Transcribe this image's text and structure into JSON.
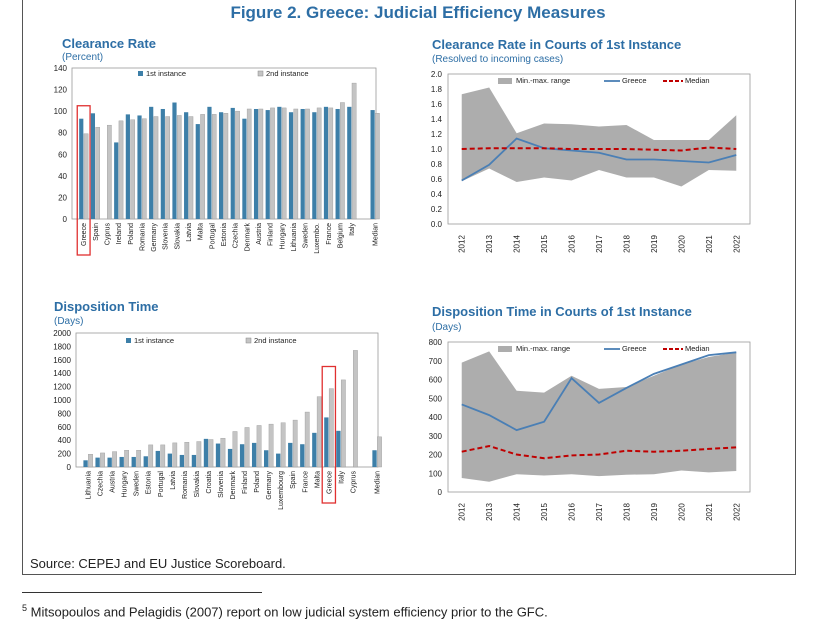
{
  "figure_title": "Figure 2. Greece: Judicial Efficiency Measures",
  "source": "Source: CEPEJ and EU Justice Scoreboard.",
  "footnote": {
    "number": "5",
    "text": "Mitsopoulos and Pelagidis (2007) report on low judicial system efficiency prior to the GFC."
  },
  "colors": {
    "first_instance": "#3d7fa8",
    "second_instance": "#c4c4c4",
    "range": "#adadad",
    "greece_line": "#4a7fb5",
    "median_line": "#c00000",
    "highlight": "#e03030",
    "title": "#2d6ea5"
  },
  "chart_data": [
    {
      "id": "clearance",
      "type": "bar",
      "title": "Clearance Rate",
      "subtitle": "(Percent)",
      "ylim": [
        0,
        140
      ],
      "yticks": [
        0,
        20,
        40,
        60,
        80,
        100,
        120,
        140
      ],
      "categories": [
        "Greece",
        "Spain",
        "Cyprus",
        "Ireland",
        "Poland",
        "Romania",
        "Germany",
        "Slovenia",
        "Slovakia",
        "Latvia",
        "Malta",
        "Portugal",
        "Estonia",
        "Czechia",
        "Denmark",
        "Austria",
        "Finland",
        "Hungary",
        "Lithuania",
        "Sweden",
        "Luxembo.",
        "France",
        "Belgium",
        "Italy",
        "Median"
      ],
      "highlight": "Greece",
      "series": [
        {
          "name": "1st instance",
          "values": [
            93,
            98,
            null,
            71,
            97,
            96,
            104,
            102,
            108,
            99,
            88,
            104,
            99,
            103,
            93,
            102,
            101,
            104,
            99,
            102,
            99,
            104,
            102,
            104,
            101
          ]
        },
        {
          "name": "2nd instance",
          "values": [
            79,
            85,
            87,
            91,
            92,
            93,
            95,
            95,
            96,
            95,
            97,
            97,
            98,
            100,
            102,
            102,
            103,
            103,
            102,
            102,
            103,
            103,
            108,
            126,
            98
          ]
        }
      ]
    },
    {
      "id": "clearance_trend",
      "type": "area",
      "title": "Clearance Rate in Courts of 1st Instance",
      "subtitle": "(Resolved to incoming cases)",
      "ylim": [
        0,
        2.0
      ],
      "yticks": [
        0.0,
        0.2,
        0.4,
        0.6,
        0.8,
        1.0,
        1.2,
        1.4,
        1.6,
        1.8,
        2.0
      ],
      "x": [
        "2012",
        "2013",
        "2014",
        "2015",
        "2016",
        "2017",
        "2018",
        "2019",
        "2020",
        "2021",
        "2022"
      ],
      "legend": [
        "Min.-max. range",
        "Greece",
        "Median"
      ],
      "range_min": [
        0.57,
        0.74,
        0.56,
        0.62,
        0.58,
        0.72,
        0.62,
        0.62,
        0.5,
        0.72,
        0.71
      ],
      "range_max": [
        1.73,
        1.82,
        1.21,
        1.34,
        1.33,
        1.3,
        1.32,
        1.12,
        1.12,
        1.12,
        1.45
      ],
      "series": [
        {
          "name": "Greece",
          "values": [
            0.58,
            0.79,
            1.14,
            1.01,
            0.98,
            0.95,
            0.86,
            0.86,
            0.84,
            0.82,
            0.92
          ]
        },
        {
          "name": "Median",
          "values": [
            1.0,
            1.01,
            1.01,
            1.01,
            1.0,
            1.0,
            1.0,
            0.99,
            0.98,
            1.02,
            1.0
          ]
        }
      ]
    },
    {
      "id": "disposition",
      "type": "bar",
      "title": "Disposition Time",
      "subtitle": "(Days)",
      "ylim": [
        0,
        2000
      ],
      "yticks": [
        0,
        200,
        400,
        600,
        800,
        1000,
        1200,
        1400,
        1600,
        1800,
        2000
      ],
      "categories": [
        "Lithuania",
        "Czechia",
        "Austria",
        "Hungary",
        "Sweden",
        "Estonia",
        "Portugal",
        "Latvia",
        "Romania",
        "Slovakia",
        "Croatia",
        "Slovenia",
        "Denmark",
        "Finland",
        "Poland",
        "Germany",
        "Luxembourg",
        "Spain",
        "France",
        "Malta",
        "Greece",
        "Italy",
        "Cyprus",
        "Median"
      ],
      "highlight": "Greece",
      "series": [
        {
          "name": "1st instance",
          "values": [
            100,
            140,
            140,
            150,
            150,
            160,
            240,
            200,
            180,
            180,
            420,
            350,
            270,
            340,
            360,
            250,
            200,
            360,
            340,
            510,
            740,
            540,
            null,
            250
          ]
        },
        {
          "name": "2nd instance",
          "values": [
            190,
            210,
            230,
            250,
            250,
            330,
            330,
            360,
            370,
            380,
            410,
            430,
            530,
            590,
            620,
            640,
            660,
            700,
            820,
            1050,
            1170,
            1300,
            1740,
            450
          ]
        }
      ]
    },
    {
      "id": "disposition_trend",
      "type": "area",
      "title": "Disposition Time in Courts of 1st Instance",
      "subtitle": "(Days)",
      "ylim": [
        0,
        800
      ],
      "yticks": [
        0,
        100,
        200,
        300,
        400,
        500,
        600,
        700,
        800
      ],
      "x": [
        "2012",
        "2013",
        "2014",
        "2015",
        "2016",
        "2017",
        "2018",
        "2019",
        "2020",
        "2021",
        "2022"
      ],
      "legend": [
        "Min.-max. range",
        "Greece",
        "Median"
      ],
      "range_min": [
        75,
        55,
        95,
        88,
        95,
        85,
        92,
        95,
        115,
        105,
        112
      ],
      "range_max": [
        690,
        750,
        540,
        530,
        620,
        550,
        560,
        620,
        680,
        720,
        745
      ],
      "series": [
        {
          "name": "Greece",
          "values": [
            467,
            410,
            330,
            375,
            607,
            475,
            555,
            630,
            680,
            730,
            745
          ]
        },
        {
          "name": "Median",
          "values": [
            215,
            245,
            200,
            180,
            195,
            200,
            220,
            215,
            220,
            230,
            238
          ]
        }
      ]
    }
  ]
}
